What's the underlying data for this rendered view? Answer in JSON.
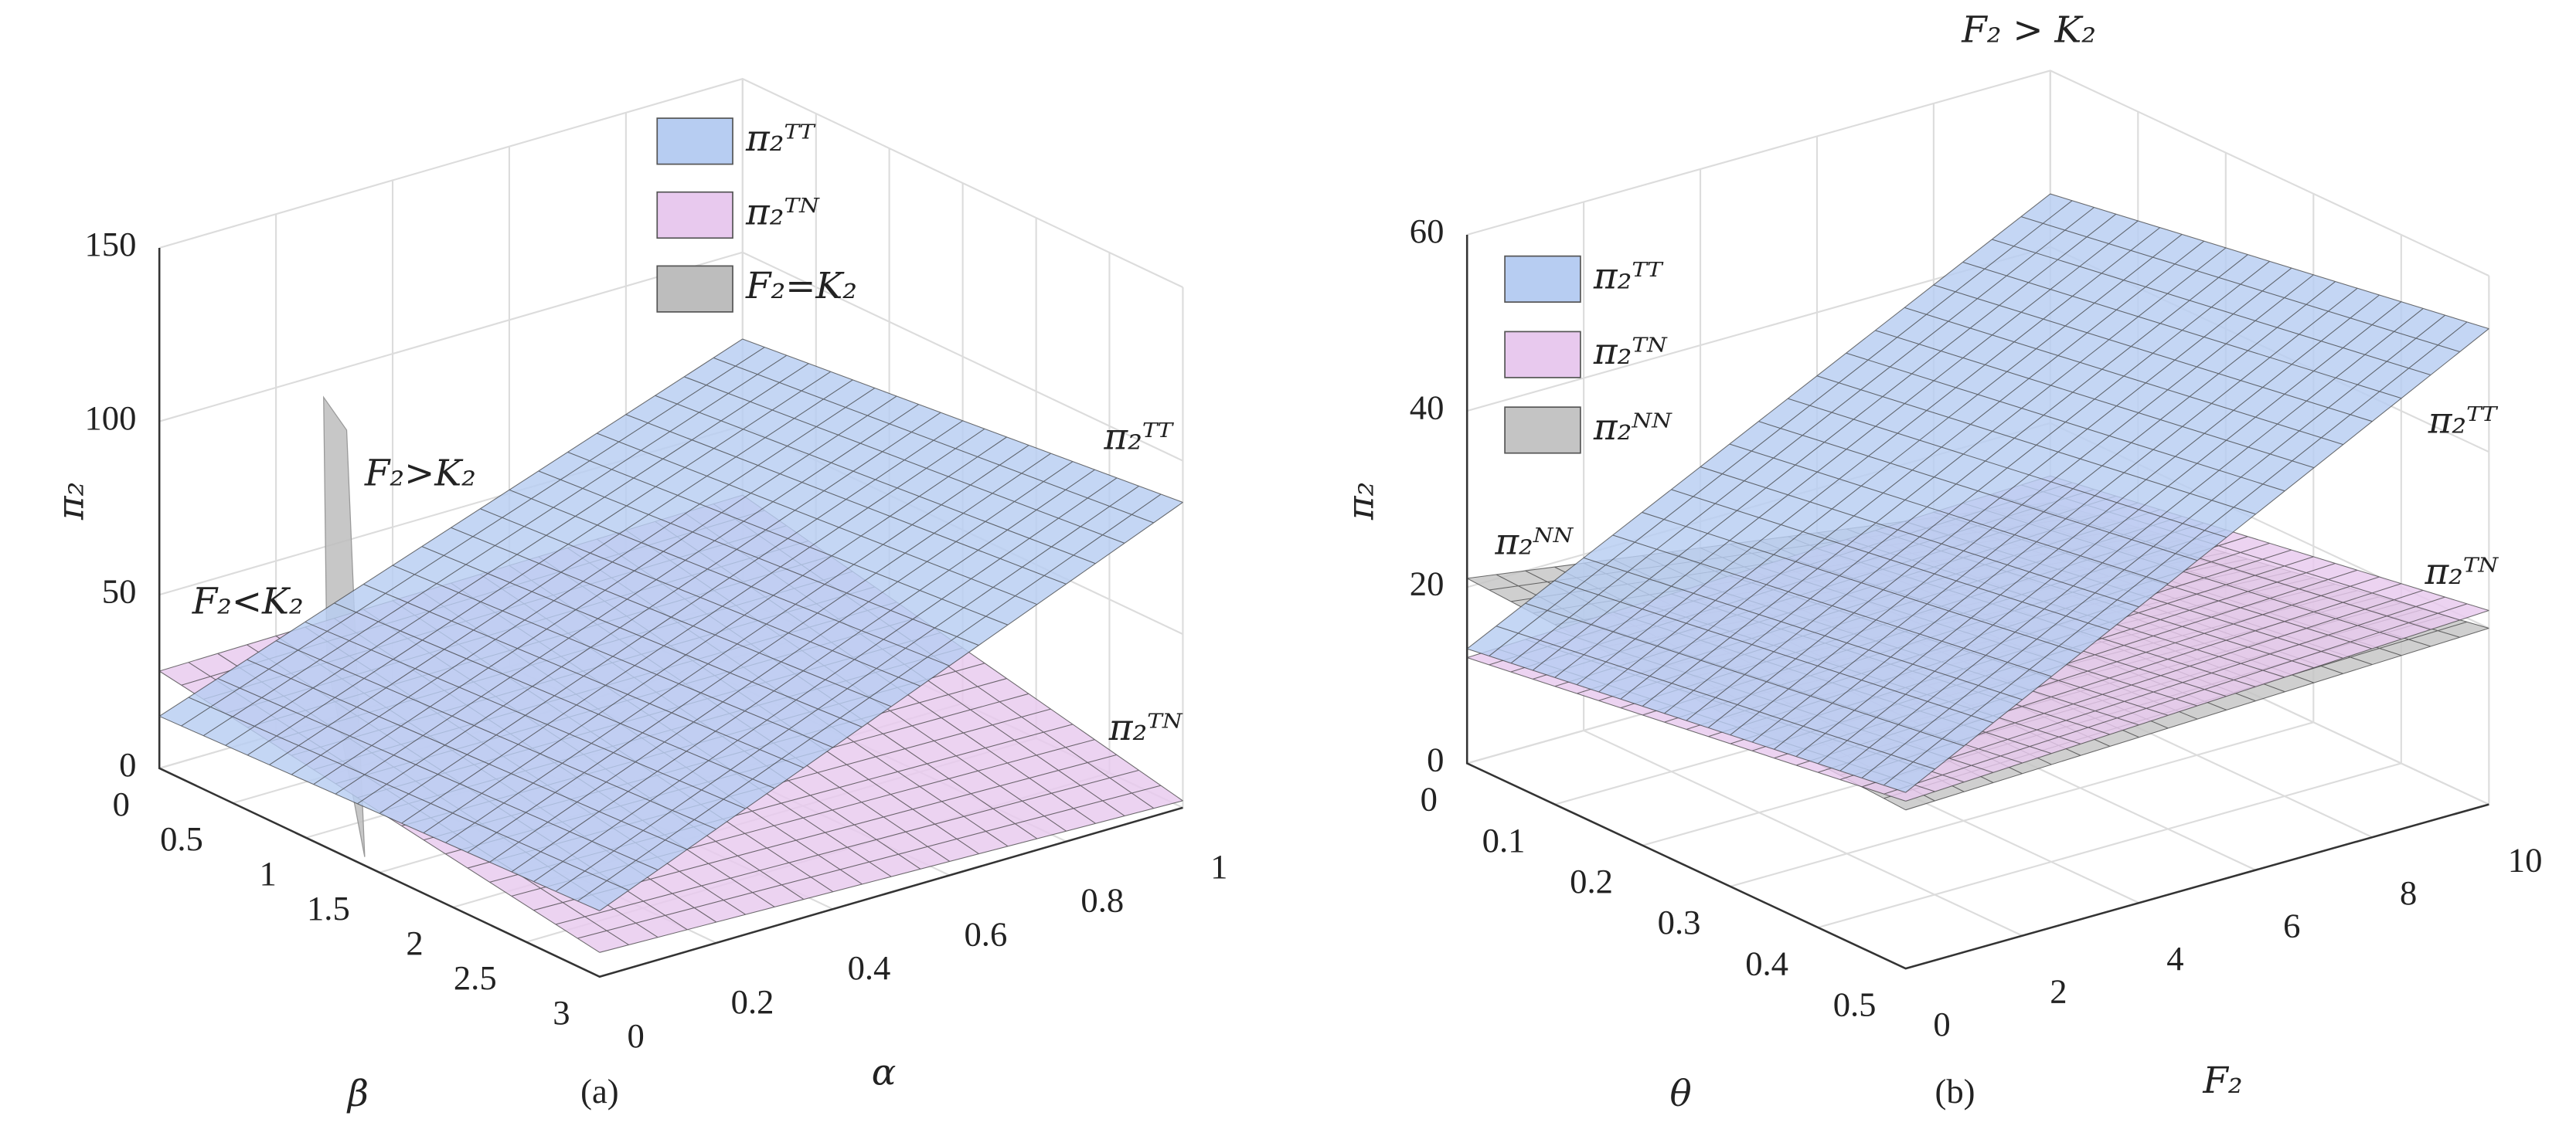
{
  "chart_data": [
    {
      "type": "surface3d",
      "caption": "(a)",
      "xlabel": "α",
      "ylabel": "β",
      "zlabel": "π₂",
      "xlim": [
        0,
        1
      ],
      "xticks": [
        0,
        0.2,
        0.4,
        0.6,
        0.8,
        1
      ],
      "ylim": [
        0,
        3
      ],
      "yticks": [
        0,
        0.5,
        1,
        1.5,
        2,
        2.5,
        3
      ],
      "zlim": [
        0,
        150
      ],
      "zticks": [
        0,
        50,
        100,
        150
      ],
      "grid": true,
      "series": [
        {
          "name": "π₂ᵀᵀ",
          "color": "#b7cdf2",
          "values": [
            [
              15,
              19
            ],
            [
              75,
              88
            ]
          ]
        },
        {
          "name": "π₂ᵀᴺ",
          "color": "#e8c9ee",
          "values": [
            [
              28,
              7
            ],
            [
              30,
              2
            ]
          ]
        },
        {
          "name": "F₂=K₂",
          "color": "#bdbdbd"
        }
      ],
      "annotations": [
        "F₂>K₂",
        "F₂<K₂",
        "π₂ᵀᵀ",
        "π₂ᵀᴺ"
      ]
    },
    {
      "type": "surface3d",
      "title": "F₂ > K₂",
      "caption": "(b)",
      "xlabel": "F₂",
      "ylabel": "θ",
      "zlabel": "π₂",
      "xlim": [
        0,
        10
      ],
      "xticks": [
        0,
        2,
        4,
        6,
        8,
        10
      ],
      "ylim": [
        0,
        0.5
      ],
      "yticks": [
        0,
        0.1,
        0.2,
        0.3,
        0.4,
        0.5
      ],
      "zlim": [
        0,
        60
      ],
      "zticks": [
        0,
        20,
        40,
        60
      ],
      "grid": true,
      "series": [
        {
          "name": "π₂ᵀᵀ",
          "color": "#b7cdf2",
          "values": [
            [
              13,
              20
            ],
            [
              46,
              54
            ]
          ]
        },
        {
          "name": "π₂ᵀᴺ",
          "color": "#e8c9ee",
          "values": [
            [
              12,
              19
            ],
            [
              14,
              22
            ]
          ]
        },
        {
          "name": "π₂ᴺᴺ",
          "color": "#c4c4c4",
          "values": [
            [
              21,
              18
            ],
            [
              11,
              20
            ]
          ]
        }
      ],
      "annotations": [
        "π₂ᵀᵀ",
        "π₂ᵀᴺ",
        "π₂ᴺᴺ"
      ]
    }
  ]
}
